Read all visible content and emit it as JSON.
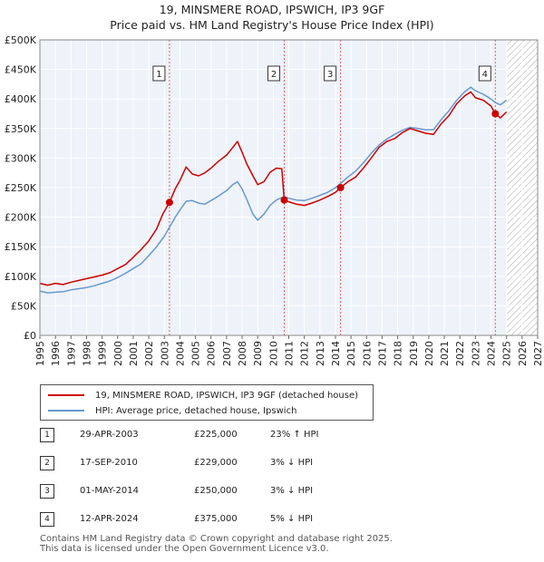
{
  "title": {
    "line1": "19, MINSMERE ROAD, IPSWICH, IP3 9GF",
    "line2": "Price paid vs. HM Land Registry's House Price Index (HPI)"
  },
  "colors": {
    "property": "#cc0000",
    "hpi": "#6699cc",
    "marker_line": "#e06060",
    "grid": "#e0e0e0",
    "plot_bg": "#eef2f9"
  },
  "chart_data": {
    "type": "line",
    "title": "Price paid vs. HM Land Registry's House Price Index (HPI)",
    "xlim": [
      1995,
      2027
    ],
    "ylim": [
      0,
      500000
    ],
    "y_ticks": [
      {
        "value": 0,
        "label": "£0"
      },
      {
        "value": 50000,
        "label": "£50K"
      },
      {
        "value": 100000,
        "label": "£100K"
      },
      {
        "value": 150000,
        "label": "£150K"
      },
      {
        "value": 200000,
        "label": "£200K"
      },
      {
        "value": 250000,
        "label": "£250K"
      },
      {
        "value": 300000,
        "label": "£300K"
      },
      {
        "value": 350000,
        "label": "£350K"
      },
      {
        "value": 400000,
        "label": "£400K"
      },
      {
        "value": 450000,
        "label": "£450K"
      },
      {
        "value": 500000,
        "label": "£500K"
      }
    ],
    "x_ticks": [
      "1995",
      "1996",
      "1997",
      "1998",
      "1999",
      "2000",
      "2001",
      "2002",
      "2003",
      "2004",
      "2005",
      "2006",
      "2007",
      "2008",
      "2009",
      "2010",
      "2011",
      "2012",
      "2013",
      "2014",
      "2015",
      "2016",
      "2017",
      "2018",
      "2019",
      "2020",
      "2021",
      "2022",
      "2023",
      "2024",
      "2025",
      "2026",
      "2027"
    ],
    "hatch_from": 2025.0,
    "series": [
      {
        "name": "19, MINSMERE ROAD, IPSWICH, IP3 9GF (detached house)",
        "color": "#cc0000",
        "points": [
          [
            1995.0,
            88000
          ],
          [
            1995.5,
            85000
          ],
          [
            1996.0,
            88000
          ],
          [
            1996.5,
            86000
          ],
          [
            1997.0,
            90000
          ],
          [
            1997.5,
            93000
          ],
          [
            1998.0,
            96000
          ],
          [
            1998.5,
            99000
          ],
          [
            1999.0,
            102000
          ],
          [
            1999.5,
            106000
          ],
          [
            2000.0,
            113000
          ],
          [
            2000.5,
            120000
          ],
          [
            2001.0,
            132000
          ],
          [
            2001.5,
            145000
          ],
          [
            2002.0,
            160000
          ],
          [
            2002.5,
            180000
          ],
          [
            2002.9,
            205000
          ],
          [
            2003.33,
            225000
          ],
          [
            2003.7,
            248000
          ],
          [
            2004.0,
            262000
          ],
          [
            2004.4,
            285000
          ],
          [
            2004.8,
            273000
          ],
          [
            2005.2,
            270000
          ],
          [
            2005.6,
            275000
          ],
          [
            2006.0,
            283000
          ],
          [
            2006.5,
            295000
          ],
          [
            2007.0,
            305000
          ],
          [
            2007.4,
            318000
          ],
          [
            2007.7,
            328000
          ],
          [
            2008.0,
            310000
          ],
          [
            2008.3,
            290000
          ],
          [
            2008.7,
            270000
          ],
          [
            2009.0,
            255000
          ],
          [
            2009.4,
            260000
          ],
          [
            2009.8,
            276000
          ],
          [
            2010.2,
            283000
          ],
          [
            2010.55,
            282000
          ],
          [
            2010.71,
            229000
          ],
          [
            2011.0,
            226000
          ],
          [
            2011.5,
            222000
          ],
          [
            2012.0,
            220000
          ],
          [
            2012.5,
            224000
          ],
          [
            2013.0,
            229000
          ],
          [
            2013.5,
            235000
          ],
          [
            2014.0,
            242000
          ],
          [
            2014.33,
            250000
          ],
          [
            2014.8,
            260000
          ],
          [
            2015.3,
            268000
          ],
          [
            2015.8,
            283000
          ],
          [
            2016.3,
            300000
          ],
          [
            2016.8,
            318000
          ],
          [
            2017.3,
            328000
          ],
          [
            2017.8,
            333000
          ],
          [
            2018.3,
            343000
          ],
          [
            2018.8,
            350000
          ],
          [
            2019.3,
            346000
          ],
          [
            2019.8,
            342000
          ],
          [
            2020.3,
            340000
          ],
          [
            2020.8,
            358000
          ],
          [
            2021.3,
            372000
          ],
          [
            2021.8,
            392000
          ],
          [
            2022.3,
            405000
          ],
          [
            2022.7,
            412000
          ],
          [
            2023.0,
            402000
          ],
          [
            2023.5,
            398000
          ],
          [
            2024.0,
            388000
          ],
          [
            2024.28,
            375000
          ],
          [
            2024.6,
            368000
          ],
          [
            2025.0,
            378000
          ]
        ]
      },
      {
        "name": "HPI: Average price, detached house, Ipswich",
        "color": "#6699cc",
        "points": [
          [
            1995.0,
            75000
          ],
          [
            1995.5,
            72000
          ],
          [
            1996.0,
            73000
          ],
          [
            1996.5,
            74000
          ],
          [
            1997.0,
            77000
          ],
          [
            1997.5,
            79000
          ],
          [
            1998.0,
            81000
          ],
          [
            1998.5,
            84000
          ],
          [
            1999.0,
            88000
          ],
          [
            1999.5,
            92000
          ],
          [
            2000.0,
            98000
          ],
          [
            2000.5,
            105000
          ],
          [
            2001.0,
            113000
          ],
          [
            2001.5,
            121000
          ],
          [
            2002.0,
            135000
          ],
          [
            2002.5,
            150000
          ],
          [
            2003.0,
            168000
          ],
          [
            2003.33,
            183000
          ],
          [
            2003.7,
            200000
          ],
          [
            2004.0,
            212000
          ],
          [
            2004.4,
            227000
          ],
          [
            2004.8,
            228000
          ],
          [
            2005.2,
            224000
          ],
          [
            2005.6,
            222000
          ],
          [
            2006.0,
            228000
          ],
          [
            2006.5,
            236000
          ],
          [
            2007.0,
            245000
          ],
          [
            2007.4,
            255000
          ],
          [
            2007.7,
            260000
          ],
          [
            2008.0,
            248000
          ],
          [
            2008.3,
            230000
          ],
          [
            2008.7,
            205000
          ],
          [
            2009.0,
            195000
          ],
          [
            2009.4,
            205000
          ],
          [
            2009.8,
            220000
          ],
          [
            2010.2,
            229000
          ],
          [
            2010.71,
            235000
          ],
          [
            2011.0,
            232000
          ],
          [
            2011.5,
            229000
          ],
          [
            2012.0,
            228000
          ],
          [
            2012.5,
            232000
          ],
          [
            2013.0,
            237000
          ],
          [
            2013.5,
            242000
          ],
          [
            2014.0,
            250000
          ],
          [
            2014.33,
            257000
          ],
          [
            2014.8,
            268000
          ],
          [
            2015.3,
            278000
          ],
          [
            2015.8,
            292000
          ],
          [
            2016.3,
            308000
          ],
          [
            2016.8,
            322000
          ],
          [
            2017.3,
            332000
          ],
          [
            2017.8,
            340000
          ],
          [
            2018.3,
            347000
          ],
          [
            2018.8,
            352000
          ],
          [
            2019.3,
            350000
          ],
          [
            2019.8,
            348000
          ],
          [
            2020.3,
            348000
          ],
          [
            2020.8,
            365000
          ],
          [
            2021.3,
            380000
          ],
          [
            2021.8,
            398000
          ],
          [
            2022.3,
            412000
          ],
          [
            2022.7,
            420000
          ],
          [
            2023.0,
            414000
          ],
          [
            2023.5,
            408000
          ],
          [
            2024.0,
            400000
          ],
          [
            2024.28,
            394000
          ],
          [
            2024.6,
            390000
          ],
          [
            2025.0,
            398000
          ]
        ]
      }
    ],
    "markers": [
      {
        "label": "1",
        "x": 2003.33,
        "y": 225000
      },
      {
        "label": "2",
        "x": 2010.71,
        "y": 229000
      },
      {
        "label": "3",
        "x": 2014.33,
        "y": 250000
      },
      {
        "label": "4",
        "x": 2024.28,
        "y": 375000
      }
    ]
  },
  "legend": {
    "property_label": "19, MINSMERE ROAD, IPSWICH, IP3 9GF (detached house)",
    "hpi_label": "HPI: Average price, detached house, Ipswich"
  },
  "transactions": [
    {
      "num": "1",
      "date": "29-APR-2003",
      "price": "£225,000",
      "hpi": "23% ↑ HPI"
    },
    {
      "num": "2",
      "date": "17-SEP-2010",
      "price": "£229,000",
      "hpi": "3% ↓ HPI"
    },
    {
      "num": "3",
      "date": "01-MAY-2014",
      "price": "£250,000",
      "hpi": "3% ↓ HPI"
    },
    {
      "num": "4",
      "date": "12-APR-2024",
      "price": "£375,000",
      "hpi": "5% ↓ HPI"
    }
  ],
  "footer": {
    "line1": "Contains HM Land Registry data © Crown copyright and database right 2025.",
    "line2": "This data is licensed under the Open Government Licence v3.0."
  }
}
